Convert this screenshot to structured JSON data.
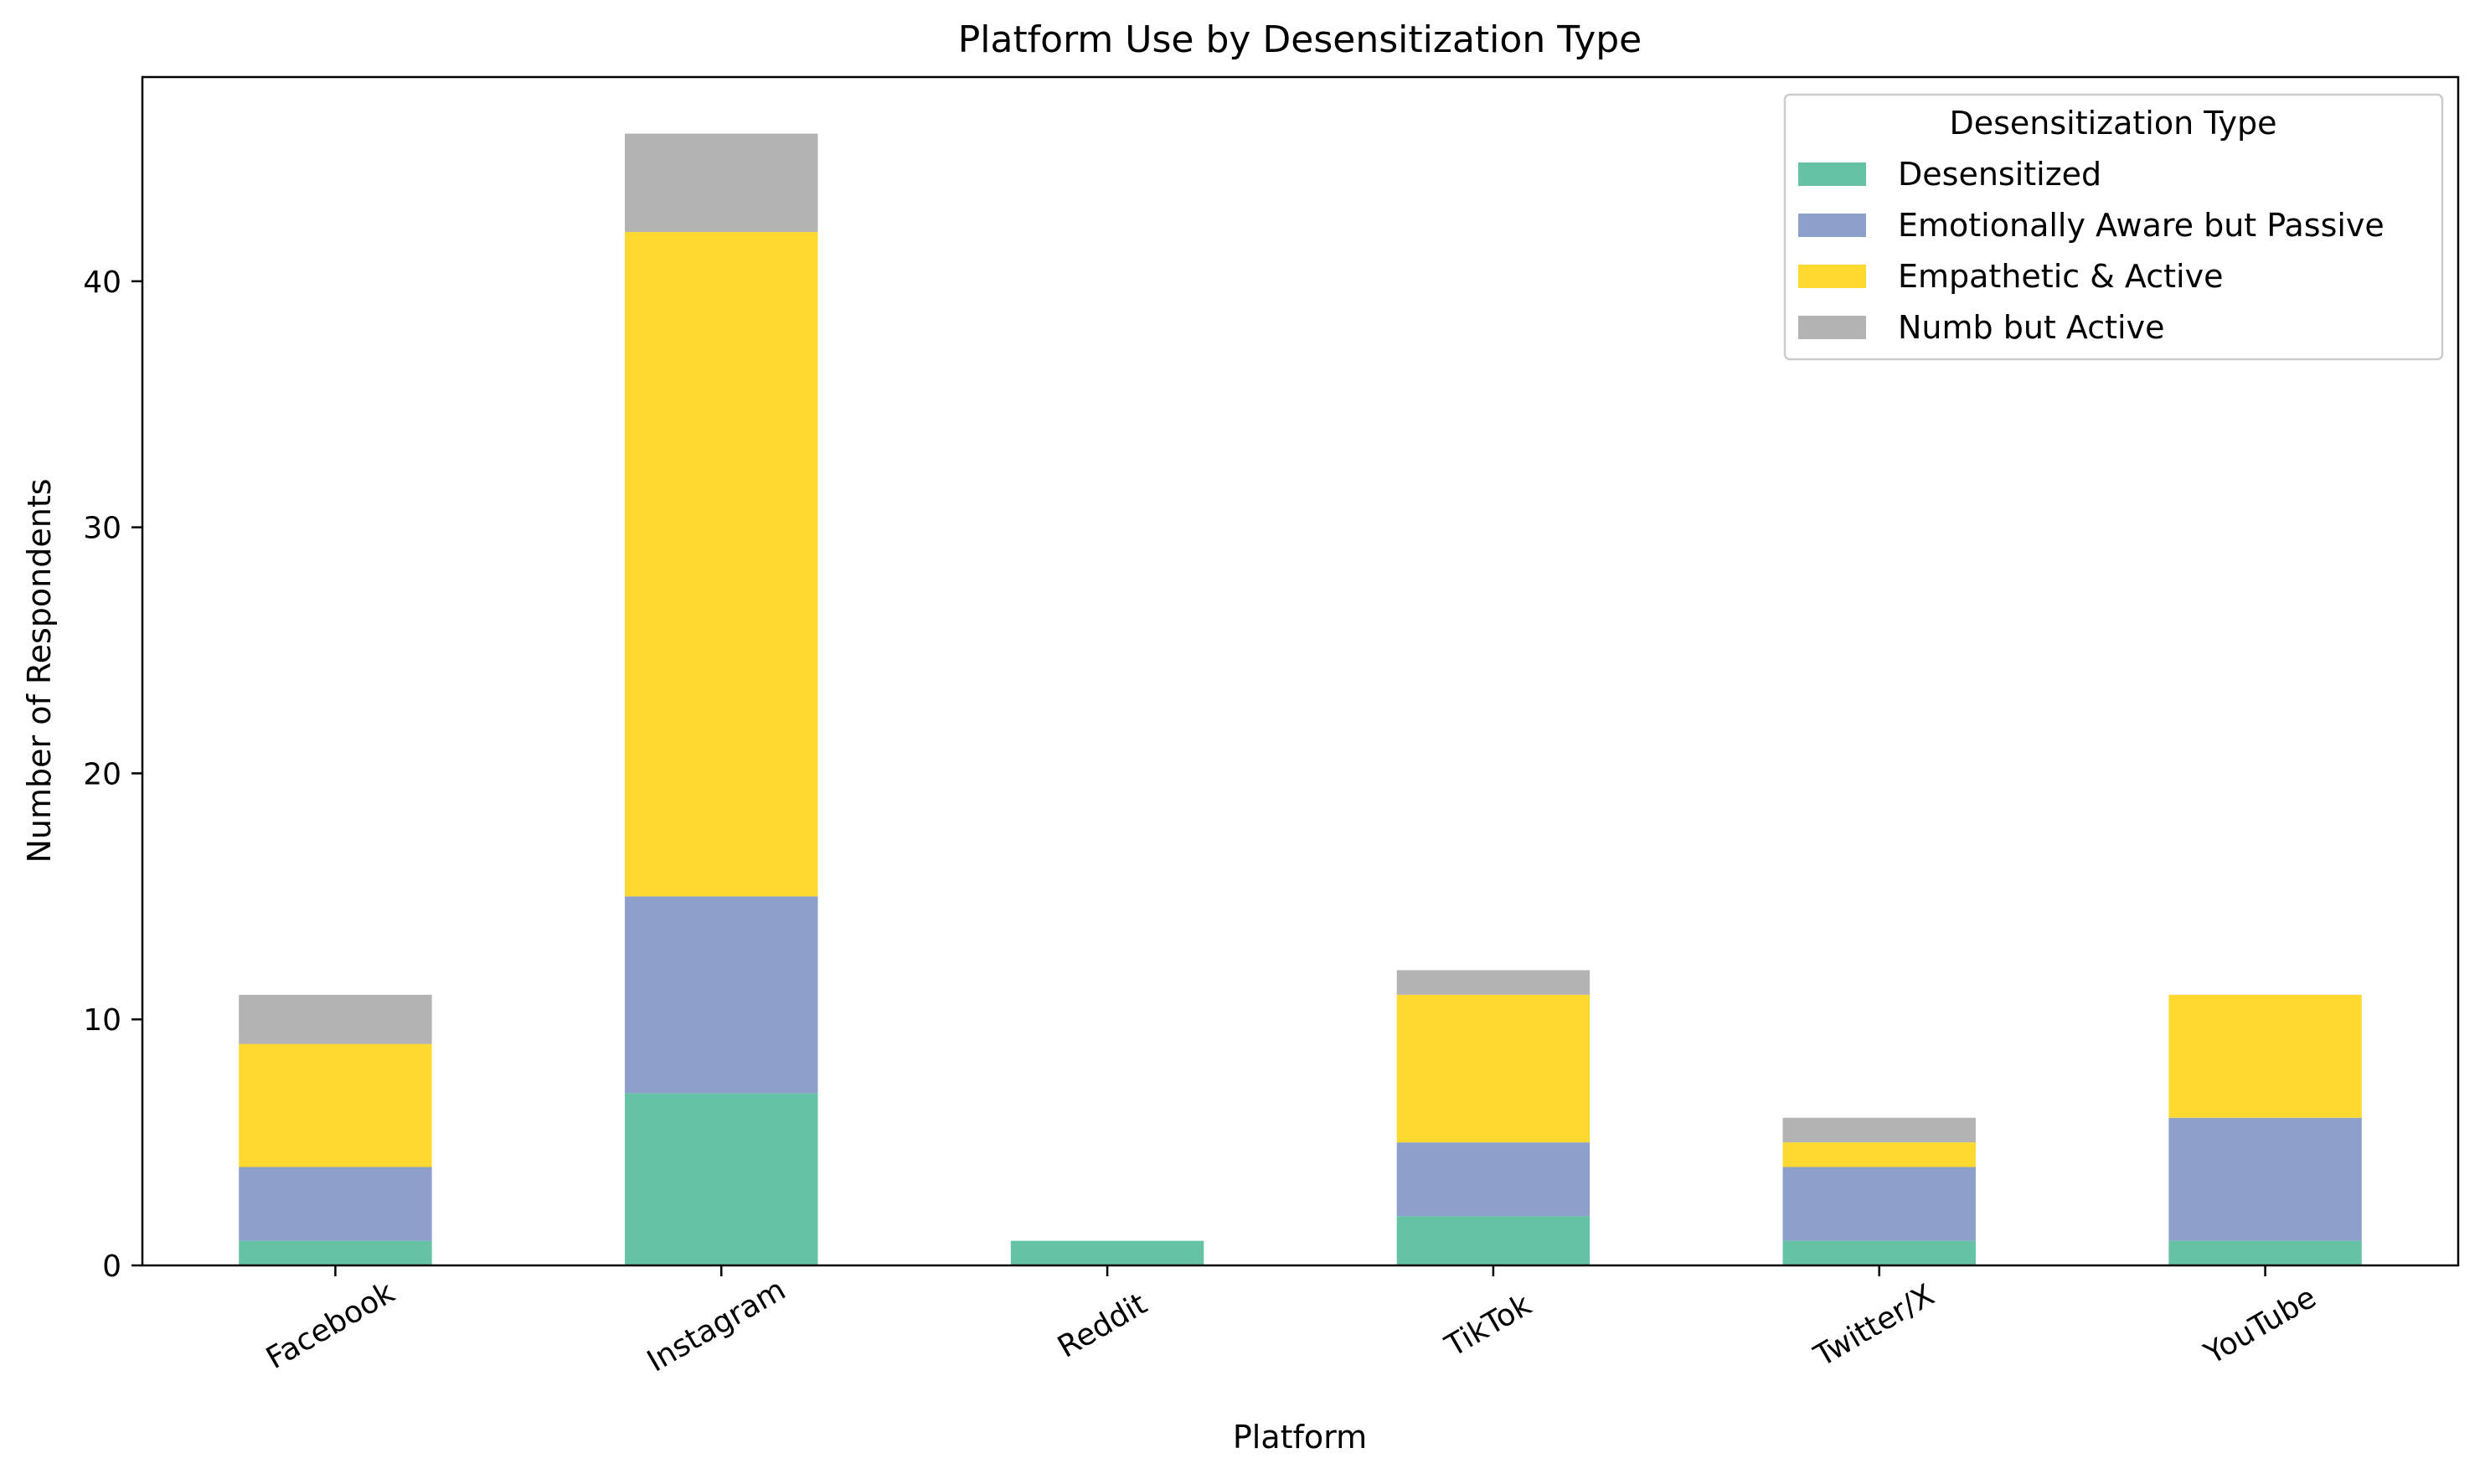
{
  "chart_data": {
    "type": "bar",
    "stacked": true,
    "title": "Platform Use by Desensitization Type",
    "xlabel": "Platform",
    "ylabel": "Number of Respondents",
    "ylim": [
      0,
      48.3
    ],
    "yticks": [
      0,
      10,
      20,
      30,
      40
    ],
    "grid": false,
    "categories": [
      "Facebook",
      "Instagram",
      "Reddit",
      "TikTok",
      "Twitter/X",
      "YouTube"
    ],
    "legend": {
      "title": "Desensitization Type",
      "placement": "top-right"
    },
    "series": [
      {
        "name": "Desensitized",
        "color": "#66c2a5",
        "values": [
          1,
          7,
          1,
          2,
          1,
          1
        ]
      },
      {
        "name": "Emotionally Aware but Passive",
        "color": "#8da0cb",
        "values": [
          3,
          8,
          0,
          3,
          3,
          5
        ]
      },
      {
        "name": "Empathetic & Active",
        "color": "#ffd92f",
        "values": [
          5,
          27,
          0,
          6,
          1,
          5
        ]
      },
      {
        "name": "Numb but Active",
        "color": "#b3b3b3",
        "values": [
          2,
          4,
          0,
          1,
          1,
          0
        ]
      }
    ]
  }
}
